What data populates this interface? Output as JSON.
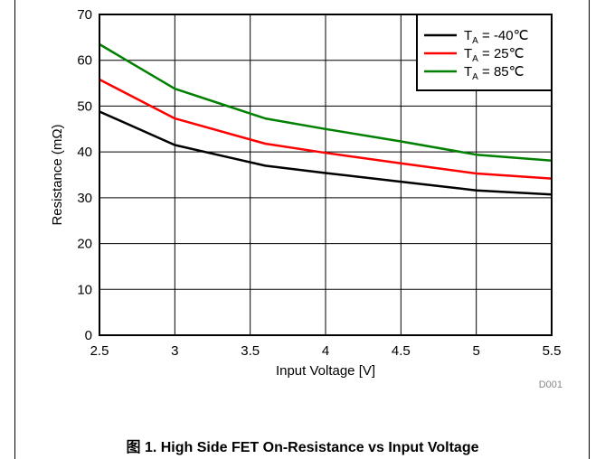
{
  "caption": "图 1. High Side FET On-Resistance vs Input Voltage",
  "figure_code": "D001",
  "chart_data": {
    "type": "line",
    "xlabel": "Input Voltage [V]",
    "ylabel": "Resistance (mΩ)",
    "xlim": [
      2.5,
      5.5
    ],
    "ylim": [
      0,
      70
    ],
    "xticks": [
      "2.5",
      "3",
      "3.5",
      "4",
      "4.5",
      "5",
      "5.5"
    ],
    "yticks": [
      "0",
      "10",
      "20",
      "30",
      "40",
      "50",
      "60",
      "70"
    ],
    "grid": true,
    "legend_position": "top-right",
    "series": [
      {
        "name": "T_A = -40℃",
        "legend_main": "T",
        "legend_sub": "A",
        "legend_rest": " = -40℃",
        "color": "#000000",
        "x": [
          2.5,
          3.0,
          3.6,
          4.0,
          4.5,
          5.0,
          5.5
        ],
        "y": [
          48.8,
          41.5,
          37.0,
          35.4,
          33.5,
          31.6,
          30.7
        ]
      },
      {
        "name": "T_A = 25℃",
        "legend_main": "T",
        "legend_sub": "A",
        "legend_rest": " = 25℃",
        "color": "#ff0000",
        "x": [
          2.5,
          3.0,
          3.6,
          4.0,
          4.5,
          5.0,
          5.5
        ],
        "y": [
          55.8,
          47.3,
          41.8,
          39.8,
          37.5,
          35.3,
          34.2
        ]
      },
      {
        "name": "T_A = 85℃",
        "legend_main": "T",
        "legend_sub": "A",
        "legend_rest": " =  85℃",
        "color": "#008000",
        "x": [
          2.5,
          3.0,
          3.6,
          4.0,
          4.5,
          5.0,
          5.5
        ],
        "y": [
          63.5,
          53.8,
          47.3,
          45.0,
          42.3,
          39.4,
          38.1
        ]
      }
    ]
  }
}
